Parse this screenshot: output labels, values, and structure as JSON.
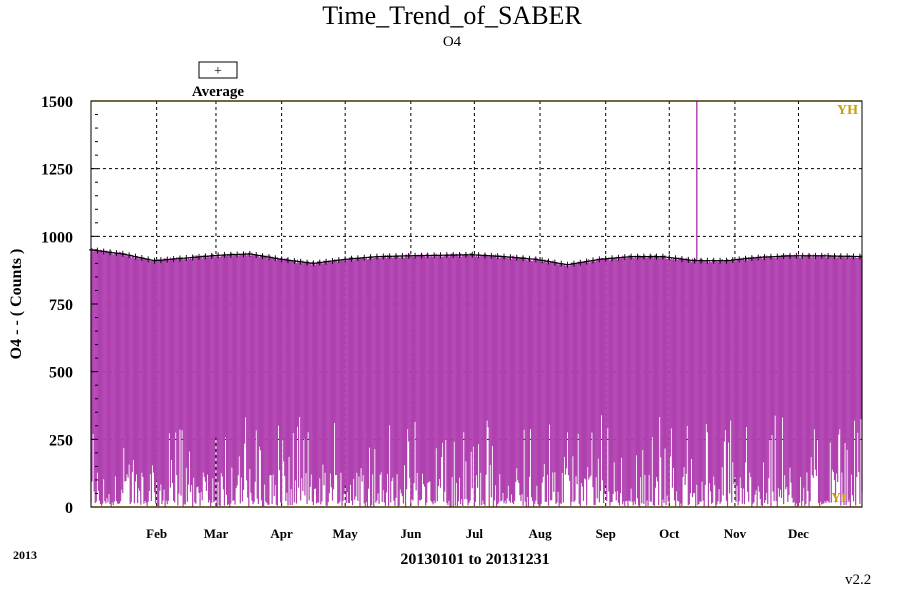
{
  "chart_data": {
    "type": "line",
    "title": "Time_Trend_of_SABER",
    "subtitle": "O4",
    "ylabel": "O4  -  - ( Counts )",
    "xlabel": "20130101 to 20131231",
    "year_label": "2013",
    "version": "v2.2",
    "legend": {
      "symbol": "+",
      "label": "Average",
      "position": "top-left"
    },
    "ylim": [
      0,
      1500
    ],
    "yticks": [
      0,
      250,
      500,
      750,
      1000,
      1250,
      1500
    ],
    "ytick_labels": [
      "0",
      "250",
      "500",
      "750",
      "1000",
      "1250",
      "1500"
    ],
    "xlim": [
      "2013-01-01",
      "2013-12-31"
    ],
    "months": [
      "Feb",
      "Mar",
      "Apr",
      "May",
      "Jun",
      "Jul",
      "Aug",
      "Sep",
      "Oct",
      "Nov",
      "Dec"
    ],
    "month_starts": [
      31,
      59,
      90,
      120,
      151,
      181,
      212,
      243,
      273,
      304,
      334
    ],
    "limits": {
      "high_label": "YH",
      "high": 1500,
      "low_label": "YL",
      "low": 0
    },
    "grid": true,
    "series": [
      {
        "name": "Average",
        "color": "#000000",
        "x_day_of_year": [
          0,
          15,
          30,
          45,
          60,
          75,
          90,
          105,
          120,
          135,
          150,
          165,
          180,
          195,
          210,
          225,
          240,
          255,
          270,
          285,
          300,
          315,
          330,
          345,
          364
        ],
        "values": [
          950,
          935,
          910,
          920,
          930,
          935,
          915,
          900,
          915,
          925,
          928,
          930,
          932,
          925,
          915,
          895,
          915,
          925,
          925,
          910,
          910,
          922,
          928,
          928,
          925
        ]
      },
      {
        "color": "#b040b0",
        "description_values": "daily max near average, daily min near 0",
        "spike": {
          "day_of_year": 286,
          "value": 1500
        }
      }
    ]
  },
  "colors": {
    "data": "#b040b0",
    "limit": "#c8a000",
    "average": "#000000",
    "grid": "#000000"
  }
}
